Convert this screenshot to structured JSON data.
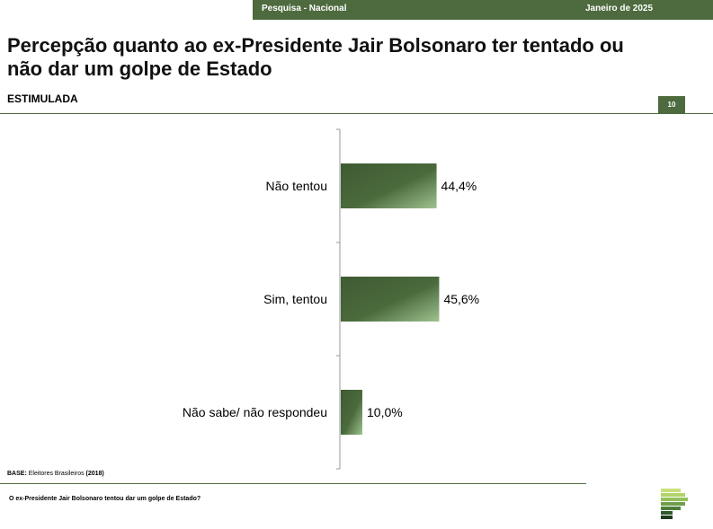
{
  "header": {
    "survey": "Pesquisa - Nacional",
    "date": "Janeiro de 2025",
    "page_number": "10"
  },
  "title": "Percepção quanto ao ex-Presidente Jair Bolsonaro ter tentado ou não dar um golpe de Estado",
  "subtitle": "ESTIMULADA",
  "footer": {
    "base_label": "BASE:",
    "base_text": " Eleitores Brasileiros ",
    "base_count": "(2018)",
    "question": "O ex-Presidente Jair Bolsonaro tentou dar um golpe de Estado?"
  },
  "colors": {
    "brand": "#4e6b3f",
    "bar_dark": "#3f5a33",
    "bar_light": "#9fc290"
  },
  "chart_data": {
    "type": "bar",
    "orientation": "horizontal",
    "categories": [
      "Não tentou",
      "Sim, tentou",
      "Não sabe/ não respondeu"
    ],
    "values": [
      44.4,
      45.6,
      10.0
    ],
    "value_labels": [
      "44,4%",
      "45,6%",
      "10,0%"
    ],
    "xlim": [
      0,
      100
    ],
    "title": "",
    "xlabel": "",
    "ylabel": "",
    "grid": false,
    "legend": "none"
  }
}
